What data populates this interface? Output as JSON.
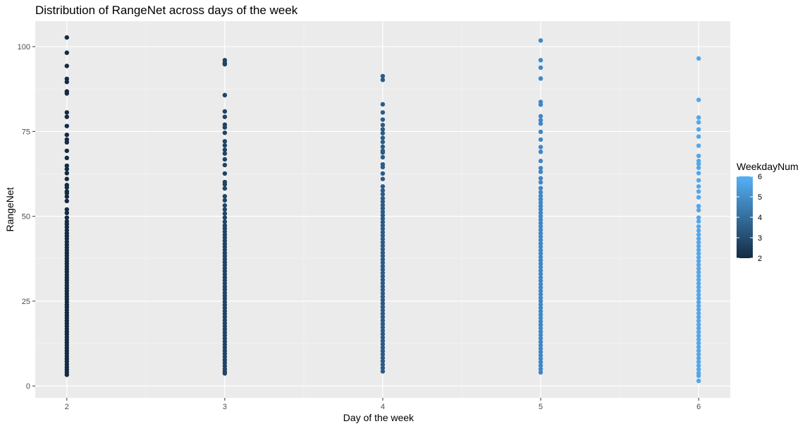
{
  "chart_data": {
    "type": "scatter",
    "title": "Distribution of RangeNet across days of the week",
    "xlabel": "Day of the week",
    "ylabel": "RangeNet",
    "x_ticks": [
      "2",
      "3",
      "4",
      "5",
      "6"
    ],
    "y_ticks": [
      "0",
      "25",
      "50",
      "75",
      "100"
    ],
    "xlim": [
      1.8,
      6.2
    ],
    "ylim": [
      -3.5,
      107.5
    ],
    "grid": true,
    "legend": {
      "title": "WeekdayNum",
      "placement": "right",
      "type": "colorbar",
      "labels": [
        "6",
        "5",
        "4",
        "3",
        "2"
      ],
      "range": [
        2,
        6
      ],
      "color_low": "#132B43",
      "color_high": "#56B1F7"
    },
    "series": [
      {
        "x": 2,
        "color": "#132B43",
        "values": [
          102.7,
          98.2,
          94.3,
          90.5,
          89.6,
          86.8,
          86.2,
          80.6,
          79.3,
          76.6,
          74.0,
          72.6,
          71.8,
          69.3,
          67.2,
          64.9,
          63.9,
          62.7,
          61.0,
          59.2,
          58.5,
          57.3,
          56.8,
          55.8,
          54.5,
          52.0,
          51.0,
          49.6,
          48.5,
          47.7,
          46.8,
          45.9,
          45.0,
          44.2,
          43.4,
          42.5,
          41.6,
          40.8,
          40.0,
          39.2,
          38.4,
          37.6,
          36.8,
          36.0,
          35.2,
          34.4,
          33.6,
          32.8,
          32.0,
          31.2,
          30.4,
          29.6,
          28.8,
          28.0,
          27.2,
          26.4,
          25.6,
          24.8,
          24.0,
          23.2,
          22.4,
          21.6,
          20.8,
          20.0,
          19.2,
          18.4,
          17.6,
          16.8,
          16.0,
          15.2,
          14.4,
          13.6,
          12.8,
          12.0,
          11.2,
          10.4,
          9.6,
          8.8,
          8.0,
          7.2,
          6.4,
          5.6,
          4.8,
          4.0,
          3.3
        ]
      },
      {
        "x": 3,
        "color": "#1E4466",
        "values": [
          96.0,
          95.2,
          94.8,
          85.7,
          80.9,
          79.3,
          77.0,
          76.2,
          74.6,
          72.1,
          70.9,
          69.6,
          68.5,
          66.8,
          65.1,
          62.6,
          60.1,
          59.4,
          58.2,
          55.9,
          54.7,
          53.2,
          52.0,
          50.8,
          49.6,
          48.4,
          47.3,
          46.4,
          45.5,
          44.6,
          43.7,
          42.8,
          41.9,
          41.0,
          40.1,
          39.2,
          38.3,
          37.4,
          36.5,
          35.6,
          34.7,
          33.8,
          32.9,
          32.0,
          31.1,
          30.2,
          29.3,
          28.4,
          27.5,
          26.6,
          25.7,
          24.8,
          23.9,
          23.0,
          22.1,
          21.2,
          20.3,
          19.4,
          18.5,
          17.6,
          16.7,
          15.8,
          14.9,
          14.0,
          13.1,
          12.2,
          11.3,
          10.4,
          9.5,
          8.6,
          7.7,
          6.8,
          5.9,
          5.0,
          4.2,
          3.7
        ]
      },
      {
        "x": 4,
        "color": "#2A5C87",
        "values": [
          91.3,
          90.2,
          83.0,
          80.6,
          78.5,
          76.9,
          75.6,
          74.5,
          73.1,
          71.9,
          70.5,
          69.3,
          68.8,
          67.4,
          65.3,
          64.5,
          62.6,
          61.0,
          58.8,
          57.6,
          56.5,
          55.3,
          54.3,
          53.3,
          52.3,
          51.3,
          50.3,
          49.3,
          48.3,
          47.3,
          46.3,
          45.3,
          44.3,
          43.3,
          42.3,
          41.3,
          40.3,
          39.3,
          38.3,
          37.3,
          36.3,
          35.3,
          34.3,
          33.3,
          32.3,
          31.3,
          30.3,
          29.3,
          28.3,
          27.3,
          26.3,
          25.3,
          24.3,
          23.3,
          22.3,
          21.3,
          20.3,
          19.3,
          18.3,
          17.3,
          16.3,
          15.3,
          14.3,
          13.3,
          12.3,
          11.3,
          10.3,
          9.3,
          8.3,
          7.3,
          6.3,
          5.3,
          4.3
        ]
      },
      {
        "x": 5,
        "color": "#3F87C6",
        "values": [
          101.8,
          96.0,
          93.8,
          90.6,
          83.7,
          82.9,
          79.5,
          78.3,
          77.3,
          74.9,
          72.6,
          70.4,
          69.0,
          66.3,
          64.2,
          63.1,
          61.2,
          60.0,
          58.3,
          57.1,
          56.0,
          55.0,
          54.0,
          53.0,
          52.0,
          51.0,
          50.0,
          49.0,
          48.0,
          47.0,
          46.0,
          45.0,
          44.0,
          43.0,
          42.0,
          41.0,
          40.0,
          39.0,
          38.0,
          37.0,
          36.0,
          35.0,
          34.0,
          33.0,
          32.0,
          31.0,
          30.0,
          29.0,
          28.0,
          27.0,
          26.0,
          25.0,
          24.0,
          23.0,
          22.0,
          21.0,
          20.0,
          19.0,
          18.0,
          17.0,
          16.0,
          15.0,
          14.0,
          13.0,
          12.0,
          11.0,
          10.0,
          9.0,
          8.0,
          7.0,
          6.0,
          5.0,
          4.0
        ]
      },
      {
        "x": 6,
        "color": "#50A7EE",
        "values": [
          96.5,
          84.3,
          79.1,
          77.7,
          75.6,
          73.5,
          70.8,
          67.8,
          66.3,
          65.4,
          64.3,
          62.7,
          60.6,
          58.8,
          57.3,
          55.6,
          53.0,
          51.8,
          49.6,
          48.5,
          47.0,
          45.8,
          44.6,
          43.4,
          42.3,
          41.2,
          40.1,
          39.0,
          37.9,
          36.8,
          35.7,
          34.6,
          33.5,
          32.4,
          31.3,
          30.2,
          29.1,
          28.0,
          26.9,
          25.8,
          24.7,
          23.6,
          22.5,
          21.4,
          20.3,
          19.2,
          18.1,
          17.0,
          15.9,
          14.8,
          13.7,
          12.6,
          11.5,
          10.4,
          9.3,
          8.2,
          7.1,
          6.0,
          4.9,
          3.8,
          3.0,
          1.5
        ]
      }
    ]
  }
}
